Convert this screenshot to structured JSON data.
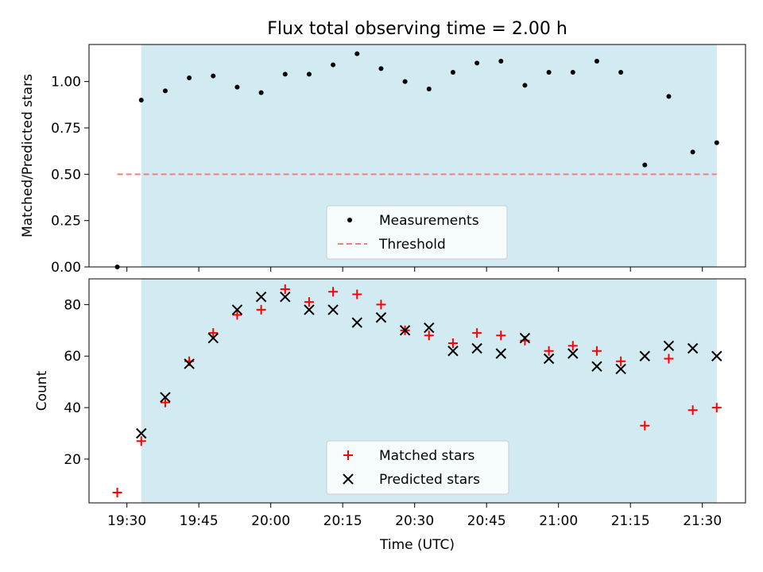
{
  "chart_data": [
    {
      "type": "scatter",
      "title": "Flux total observing time = 2.00 h",
      "ylabel": "Matched/Predicted stars",
      "xlabel": "",
      "ylim": [
        0,
        1.2
      ],
      "yticks": [
        "0.00",
        "0.25",
        "0.50",
        "0.75",
        "1.00"
      ],
      "x_axis": "time (UTC), minutes after 00:00",
      "shaded_window": [
        "19:33",
        "21:33"
      ],
      "shade_color": "#add8e6",
      "grid": false,
      "legend_placement": "lower center",
      "threshold": {
        "name": "Threshold",
        "value": 0.5,
        "x_range": [
          "19:28",
          "21:33"
        ],
        "color": "#f08080",
        "style": "dashed"
      },
      "series": [
        {
          "name": "Measurements",
          "marker": "dot",
          "color": "#000000",
          "x": [
            "19:28",
            "19:33",
            "19:38",
            "19:43",
            "19:48",
            "19:53",
            "19:58",
            "20:03",
            "20:08",
            "20:13",
            "20:18",
            "20:23",
            "20:28",
            "20:33",
            "20:38",
            "20:43",
            "20:48",
            "20:53",
            "20:58",
            "21:03",
            "21:08",
            "21:13",
            "21:18",
            "21:23",
            "21:28",
            "21:33"
          ],
          "y": [
            0.0,
            0.9,
            0.95,
            1.02,
            1.03,
            0.97,
            0.94,
            1.04,
            1.04,
            1.09,
            1.15,
            1.07,
            1.0,
            0.96,
            1.05,
            1.1,
            1.11,
            0.98,
            1.05,
            1.05,
            1.11,
            1.05,
            0.55,
            0.92,
            0.62,
            0.67
          ]
        }
      ]
    },
    {
      "type": "scatter",
      "title": "",
      "ylabel": "Count",
      "xlabel": "Time (UTC)",
      "ylim": [
        3,
        90
      ],
      "yticks": [
        "20",
        "40",
        "60",
        "80"
      ],
      "xticks": [
        "19:30",
        "19:45",
        "20:00",
        "20:15",
        "20:30",
        "20:45",
        "21:00",
        "21:15",
        "21:30"
      ],
      "shaded_window": [
        "19:33",
        "21:33"
      ],
      "grid": false,
      "legend_placement": "lower center",
      "series": [
        {
          "name": "Matched stars",
          "marker": "plus",
          "color": "#ff0000",
          "x": [
            "19:28",
            "19:33",
            "19:38",
            "19:43",
            "19:48",
            "19:53",
            "19:58",
            "20:03",
            "20:08",
            "20:13",
            "20:18",
            "20:23",
            "20:28",
            "20:33",
            "20:38",
            "20:43",
            "20:48",
            "20:53",
            "20:58",
            "21:03",
            "21:08",
            "21:13",
            "21:18",
            "21:23",
            "21:28",
            "21:33"
          ],
          "y": [
            7,
            27,
            42,
            58,
            69,
            76,
            78,
            86,
            81,
            85,
            84,
            80,
            70,
            68,
            65,
            69,
            68,
            66,
            62,
            64,
            62,
            58,
            33,
            59,
            39,
            40
          ]
        },
        {
          "name": "Predicted stars",
          "marker": "x",
          "color": "#000000",
          "x": [
            "19:33",
            "19:38",
            "19:43",
            "19:48",
            "19:53",
            "19:58",
            "20:03",
            "20:08",
            "20:13",
            "20:18",
            "20:23",
            "20:28",
            "20:33",
            "20:38",
            "20:43",
            "20:48",
            "20:53",
            "20:58",
            "21:03",
            "21:08",
            "21:13",
            "21:18",
            "21:23",
            "21:28",
            "21:33"
          ],
          "y": [
            30,
            44,
            57,
            67,
            78,
            83,
            83,
            78,
            78,
            73,
            75,
            70,
            71,
            62,
            63,
            61,
            67,
            59,
            61,
            56,
            55,
            60,
            64,
            63,
            60
          ]
        }
      ]
    }
  ]
}
